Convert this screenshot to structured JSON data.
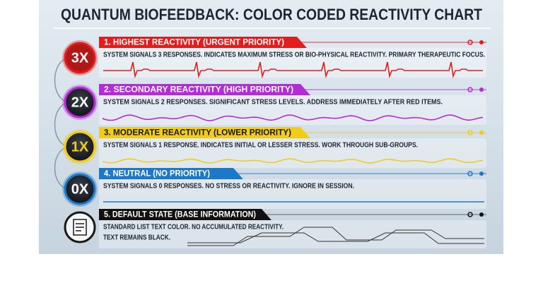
{
  "title": "QUANTUM BIOFEEDBACK: COLOR CODED REACTIVITY CHART",
  "levels": [
    {
      "badge": "3X",
      "heading": "1. HIGHEST REACTIVITY (URGENT PRIORITY)",
      "description": [
        "SYSTEM SIGNALS 3 RESPONSES. INDICATES MAXIMUM STRESS OR BIO-PHYSICAL REACTIVITY. PRIMARY THERAPEUTIC FOCUS."
      ]
    },
    {
      "badge": "2X",
      "heading": "2. SECONDARY REACTIVITY (HIGH PRIORITY)",
      "description": [
        "SYSTEM SIGNALS 2 RESPONSES. SIGNIFICANT STRESS LEVELS. ADDRESS IMMEDIATELY AFTER RED ITEMS."
      ]
    },
    {
      "badge": "1X",
      "heading": "3. MODERATE REACTIVITY (LOWER PRIORITY)",
      "description": [
        "SYSTEM SIGNALS 1 RESPONSE. INDICATES INITIAL OR LESSER STRESS. WORK THROUGH SUB-GROUPS."
      ]
    },
    {
      "badge": "0X",
      "heading": "4. NEUTRAL (NO PRIORITY)",
      "description": [
        "SYSTEM SIGNALS 0 RESPONSES. NO STRESS OR REACTIVITY. IGNORE IN SESSION."
      ]
    },
    {
      "heading": "5. DEFAULT STATE (BASE INFORMATION)",
      "description": [
        "STANDARD LIST TEXT COLOR. NO ACCUMULATED REACTIVITY.",
        "TEXT REMAINS BLACK."
      ]
    }
  ]
}
